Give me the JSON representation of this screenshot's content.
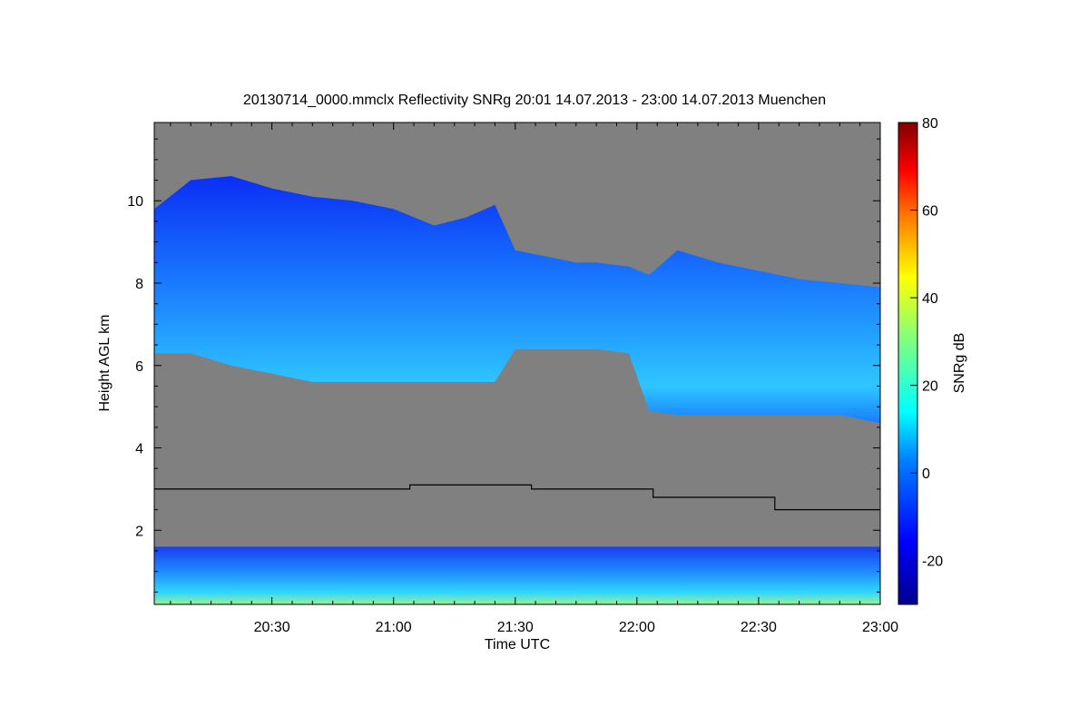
{
  "chart_data": {
    "type": "heatmap",
    "title": "20130714_0000.mmclx Reflectivity SNRg   20:01 14.07.2013 - 23:00 14.07.2013 Muenchen",
    "xlabel": "Time UTC",
    "ylabel": "Height AGL km",
    "x_ticks": [
      "20:30",
      "21:00",
      "21:30",
      "22:00",
      "22:30",
      "23:00"
    ],
    "x_tick_minutes": [
      30,
      60,
      90,
      120,
      150,
      180
    ],
    "xlim_minutes": [
      1,
      180
    ],
    "y_ticks": [
      2,
      4,
      6,
      8,
      10
    ],
    "ylim": [
      0.2,
      11.9
    ],
    "colorbar": {
      "label": "SNRg dB",
      "ticks": [
        80,
        60,
        40,
        20,
        0,
        -20
      ],
      "range": [
        -30,
        80
      ]
    },
    "colors": {
      "background": "#808080",
      "cloud_low_snr": "#0a2ef5",
      "cloud_mid_snr": "#1aa6ff",
      "cloud_high_snr": "#3fe8ff",
      "melting_line": "#000000"
    },
    "cloud_layer": {
      "description_of_data": "cloud echo region by time (minutes after 20:00): top and base height in km",
      "time_min": [
        1,
        10,
        20,
        30,
        40,
        50,
        60,
        70,
        78,
        85,
        90,
        100,
        105,
        110,
        118,
        123,
        130,
        140,
        150,
        160,
        170,
        180
      ],
      "top_km": [
        9.8,
        10.5,
        10.6,
        10.3,
        10.1,
        10.0,
        9.8,
        9.4,
        9.6,
        9.9,
        8.8,
        8.6,
        8.5,
        8.5,
        8.4,
        8.2,
        8.8,
        8.5,
        8.3,
        8.1,
        8.0,
        7.9
      ],
      "base_km": [
        6.3,
        6.3,
        6.0,
        5.8,
        5.6,
        5.6,
        5.6,
        5.6,
        5.6,
        5.6,
        6.4,
        6.4,
        6.4,
        6.4,
        6.3,
        4.9,
        4.8,
        4.8,
        4.8,
        4.8,
        4.8,
        4.6
      ]
    },
    "low_clutter": {
      "top_km": 1.6,
      "base_km": 0.2
    },
    "melting_level": {
      "time_min": [
        1,
        64,
        64,
        94,
        94,
        124,
        124,
        154,
        154,
        180
      ],
      "height_km": [
        3.0,
        3.0,
        3.1,
        3.1,
        3.0,
        3.0,
        2.8,
        2.8,
        2.5,
        2.5
      ]
    }
  }
}
